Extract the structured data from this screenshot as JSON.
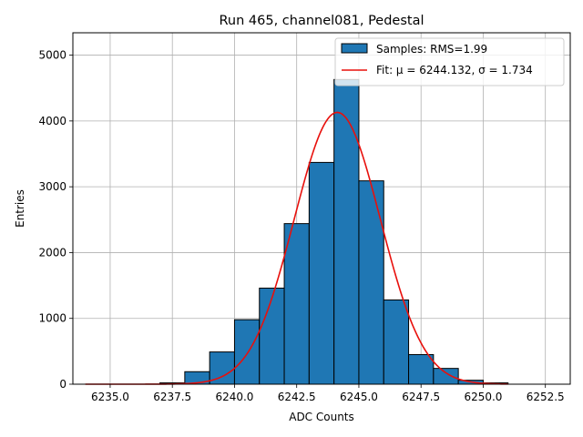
{
  "chart_data": {
    "type": "bar",
    "title": "Run 465, channel081, Pedestal",
    "xlabel": "ADC Counts",
    "ylabel": "Entries",
    "xlim": [
      6233.5,
      6253.5
    ],
    "ylim": [
      0,
      5340
    ],
    "xticks": [
      6235.0,
      6237.5,
      6240.0,
      6242.5,
      6245.0,
      6247.5,
      6250.0,
      6252.5
    ],
    "xtick_labels": [
      "6235.0",
      "6237.5",
      "6240.0",
      "6242.5",
      "6245.0",
      "6247.5",
      "6250.0",
      "6252.5"
    ],
    "yticks": [
      0,
      1000,
      2000,
      3000,
      4000,
      5000
    ],
    "ytick_labels": [
      "0",
      "1000",
      "2000",
      "3000",
      "4000",
      "5000"
    ],
    "grid": true,
    "legend_position": "top-right",
    "histogram": {
      "name": "Samples: RMS=1.99",
      "color": "#1f77b4",
      "edge_color": "#000000",
      "bins": [
        {
          "left": 6237.0,
          "right": 6238.0,
          "value": 20
        },
        {
          "left": 6238.0,
          "right": 6239.0,
          "value": 190
        },
        {
          "left": 6239.0,
          "right": 6240.0,
          "value": 490
        },
        {
          "left": 6240.0,
          "right": 6241.0,
          "value": 980
        },
        {
          "left": 6241.0,
          "right": 6242.0,
          "value": 1460
        },
        {
          "left": 6242.0,
          "right": 6243.0,
          "value": 2440
        },
        {
          "left": 6243.0,
          "right": 6244.0,
          "value": 3370
        },
        {
          "left": 6244.0,
          "right": 6245.0,
          "value": 4630
        },
        {
          "left": 6245.0,
          "right": 6246.0,
          "value": 3090
        },
        {
          "left": 6246.0,
          "right": 6247.0,
          "value": 1280
        },
        {
          "left": 6247.0,
          "right": 6248.0,
          "value": 450
        },
        {
          "left": 6248.0,
          "right": 6249.0,
          "value": 240
        },
        {
          "left": 6249.0,
          "right": 6250.0,
          "value": 60
        },
        {
          "left": 6250.0,
          "right": 6251.0,
          "value": 20
        }
      ]
    },
    "fit": {
      "name": "Fit: μ = 6244.132, σ = 1.734",
      "color": "#e8100c",
      "mu": 6244.132,
      "sigma": 1.734,
      "amplitude": 4130,
      "x_range": [
        6234.0,
        6251.0
      ]
    }
  }
}
